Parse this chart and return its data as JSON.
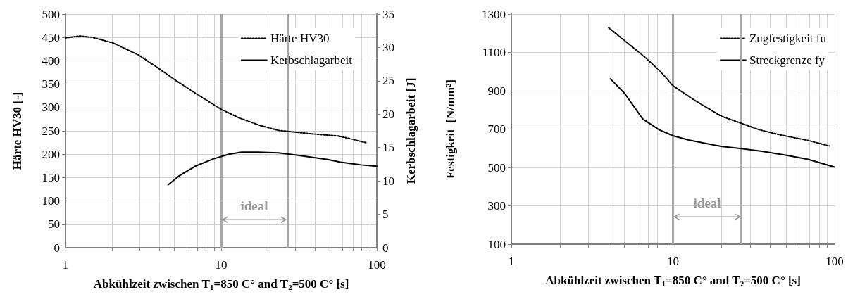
{
  "chart_data": [
    {
      "type": "line",
      "xlabel": "Abkühlzeit zwischen T$_{1}$=850 C° and T$_{2}$=500 C° [s]",
      "ylabel": "Härte HV30 [-]",
      "y2label": "Kerbschlagarbeit [J]",
      "log": "x",
      "grid": true,
      "legend": "top right",
      "xlim": [
        1,
        100
      ],
      "xticks": [
        1,
        {
          "value": 2,
          "label": null
        },
        {
          "value": 3,
          "label": null
        },
        {
          "value": 4,
          "label": null
        },
        {
          "value": 5,
          "label": null
        },
        {
          "value": 6,
          "label": null
        },
        {
          "value": 7,
          "label": null
        },
        {
          "value": 8,
          "label": null
        },
        {
          "value": 9,
          "label": null
        },
        10,
        {
          "value": 20,
          "label": null
        },
        {
          "value": 30,
          "label": null
        },
        {
          "value": 40,
          "label": null
        },
        {
          "value": 50,
          "label": null
        },
        {
          "value": 60,
          "label": null
        },
        {
          "value": 70,
          "label": null
        },
        {
          "value": 80,
          "label": null
        },
        {
          "value": 90,
          "label": null
        },
        100
      ],
      "ylim": [
        0,
        500
      ],
      "yticks": [
        0,
        50,
        100,
        150,
        200,
        250,
        300,
        350,
        400,
        450,
        500
      ],
      "y2lim": [
        0,
        35
      ],
      "y2ticks": [
        0,
        5,
        10,
        15,
        20,
        25,
        30,
        35
      ],
      "series": [
        {
          "name": "Härte HV30",
          "color": "#000000",
          "line_style": "dotted",
          "x": [
            1,
            1.24,
            1.5,
            2.03,
            2.96,
            4.0,
            5.0,
            6.8,
            10,
            13,
            17.6,
            23.3,
            26.6,
            37,
            56.5,
            68,
            86.6
          ],
          "values": [
            449,
            453,
            450,
            438,
            412,
            383,
            360,
            331,
            296,
            278,
            262,
            251,
            249,
            244,
            239,
            233,
            224
          ]
        },
        {
          "name": "Kerbschlagarbeit",
          "color": "#000000",
          "line_style": "solid",
          "axis": "y2",
          "x": [
            4.56,
            5.4,
            6.8,
            8.9,
            11.2,
            13.5,
            17.2,
            23.3,
            30,
            48.5,
            58.5,
            79,
            100
          ],
          "values": [
            9.4,
            10.8,
            12.2,
            13.3,
            14.0,
            14.3,
            14.3,
            14.2,
            13.9,
            13.2,
            12.8,
            12.4,
            12.2
          ]
        }
      ],
      "ref_lines": [
        {
          "axis": "x",
          "value": 10,
          "color": "#a6a6a6"
        },
        {
          "axis": "x",
          "value": 26.6,
          "color": "#a6a6a6"
        }
      ],
      "annotations": [
        "ideal"
      ]
    },
    {
      "type": "line",
      "xlabel": "Abkühlzeit zwischen T$_{1}$=850 C° and T$_{2}$=500 C° [s]",
      "ylabel": "Festigkeit  [N/mm²]",
      "log": "x",
      "grid": true,
      "legend": "top right",
      "xlim": [
        1,
        100
      ],
      "xticks": [
        1,
        {
          "value": 2,
          "label": null
        },
        {
          "value": 3,
          "label": null
        },
        {
          "value": 4,
          "label": null
        },
        {
          "value": 5,
          "label": null
        },
        {
          "value": 6,
          "label": null
        },
        {
          "value": 7,
          "label": null
        },
        {
          "value": 8,
          "label": null
        },
        {
          "value": 9,
          "label": null
        },
        10,
        {
          "value": 20,
          "label": null
        },
        {
          "value": 30,
          "label": null
        },
        {
          "value": 40,
          "label": null
        },
        {
          "value": 50,
          "label": null
        },
        {
          "value": 60,
          "label": null
        },
        {
          "value": 70,
          "label": null
        },
        {
          "value": 80,
          "label": null
        },
        {
          "value": 90,
          "label": null
        },
        100
      ],
      "ylim": [
        100,
        1300
      ],
      "yticks": [
        100,
        300,
        500,
        700,
        900,
        1100,
        1300
      ],
      "series": [
        {
          "name": "Zugfestigkeit fu",
          "color": "#000000",
          "line_style": "dotted",
          "x": [
            4.0,
            5.0,
            6.8,
            8.5,
            10,
            13.5,
            19.8,
            26.5,
            34,
            46.5,
            68.5,
            93
          ],
          "values": [
            1229,
            1163,
            1071,
            994,
            926,
            852,
            768,
            730,
            697,
            669,
            641,
            612
          ]
        },
        {
          "name": "Streckgrenze fy",
          "color": "#000000",
          "line_style": "solid",
          "x": [
            4.1,
            5.0,
            6.5,
            8.2,
            10,
            12.5,
            19.8,
            26.5,
            35.5,
            50.5,
            68.5,
            100
          ],
          "values": [
            962,
            888,
            753,
            697,
            665,
            643,
            610,
            598,
            584,
            563,
            542,
            502
          ]
        }
      ],
      "ref_lines": [
        {
          "axis": "x",
          "value": 10,
          "color": "#a6a6a6"
        },
        {
          "axis": "x",
          "value": 26.5,
          "color": "#a6a6a6"
        }
      ],
      "annotations": [
        "ideal"
      ]
    }
  ]
}
